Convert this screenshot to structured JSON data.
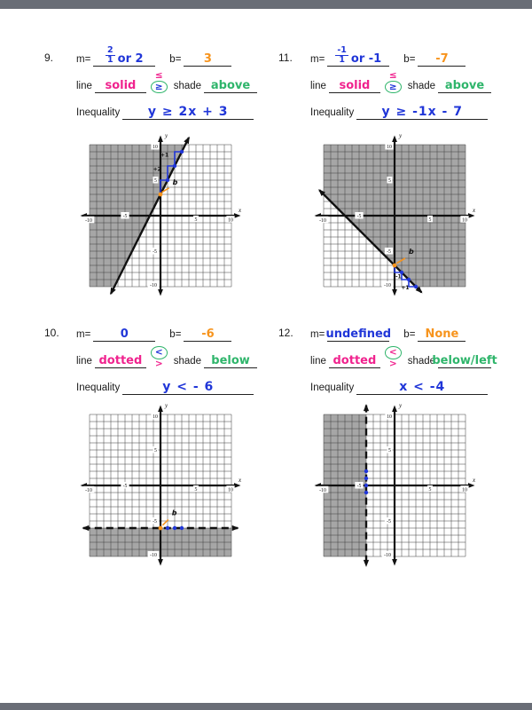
{
  "viewer": {
    "top_bar_color": "#696d76",
    "bottom_bar_color": "#696d76",
    "page_color": "#ffffff"
  },
  "colors": {
    "blue": "#2036d8",
    "orange": "#f7941d",
    "pink": "#f0238e",
    "green": "#2fb56b",
    "ink": "#1a1a1a",
    "shade": "#a6a6a6",
    "grid": "#3c3c3c"
  },
  "labels": {
    "m": "m=",
    "b": "b=",
    "line": "line",
    "shade": "shade",
    "inequality": "Inequality"
  },
  "problems": [
    {
      "number": "9.",
      "m_frac_num": "2",
      "m_frac_den": "1",
      "m_rest": "or 2",
      "b_value": "3",
      "line_value": "solid",
      "sym_top": "≤",
      "sym_bottom": "≥",
      "sym_top_color": "pink",
      "sym_bottom_color": "blue",
      "circled": "bottom",
      "shade_value": "above",
      "inequality_value": "y ≥ 2x + 3",
      "graph": {
        "xmin": -10,
        "xmax": 10,
        "ymin": -10,
        "ymax": 10,
        "x_ticks": [
          -10,
          -5,
          5,
          10
        ],
        "y_ticks": [
          10,
          5,
          -5,
          -10
        ],
        "boundary": {
          "equation": "y = 2x + 3",
          "style": "solid",
          "from": [
            -7,
            -11
          ],
          "to": [
            4,
            11
          ]
        },
        "shade_region": "above line (upper left)",
        "shade_polygon": [
          [
            -10,
            10
          ],
          [
            3.5,
            10
          ],
          [
            -6.5,
            -10
          ],
          [
            -10,
            -10
          ]
        ],
        "staircase": [
          [
            0,
            3
          ],
          [
            0,
            5
          ],
          [
            1,
            5
          ],
          [
            1,
            7
          ],
          [
            2,
            7
          ],
          [
            2,
            9
          ],
          [
            3,
            9
          ]
        ],
        "blue_points": [
          [
            1,
            5
          ],
          [
            2,
            7
          ],
          [
            3,
            9
          ]
        ],
        "orange_point": [
          0,
          3
        ],
        "orange_tick": [
          [
            0.2,
            3.3
          ],
          [
            1.2,
            3.9
          ]
        ],
        "orange_label": {
          "text": "b",
          "at": [
            1.7,
            4.4
          ]
        },
        "blue_labels": [
          {
            "text": "+2",
            "at": [
              0.1,
              6.3
            ],
            "anchor": "end"
          },
          {
            "text": "+1",
            "at": [
              1.15,
              8.3
            ],
            "anchor": "end"
          }
        ]
      }
    },
    {
      "number": "11.",
      "m_frac_num": "-1",
      "m_frac_den": "1",
      "m_rest": "or -1",
      "b_value": "-7",
      "line_value": "solid",
      "sym_top": "≤",
      "sym_bottom": "≥",
      "sym_top_color": "pink",
      "sym_bottom_color": "blue",
      "circled": "bottom",
      "shade_value": "above",
      "inequality_value": "y ≥ -1x - 7",
      "graph": {
        "xmin": -10,
        "xmax": 10,
        "ymin": -10,
        "ymax": 10,
        "x_ticks": [
          -10,
          -5,
          5,
          10
        ],
        "y_ticks": [
          10,
          5,
          -5,
          -10
        ],
        "boundary": {
          "equation": "y = -x - 7",
          "style": "solid",
          "from": [
            -10.6,
            3.6
          ],
          "to": [
            3.8,
            -10.8
          ]
        },
        "shade_region": "above line (upper right)",
        "shade_polygon": [
          [
            -10,
            3
          ],
          [
            -10,
            10
          ],
          [
            10,
            10
          ],
          [
            10,
            -10
          ],
          [
            3,
            -10
          ]
        ],
        "staircase": [
          [
            0,
            -7
          ],
          [
            0,
            -8
          ],
          [
            1,
            -8
          ],
          [
            1,
            -9
          ],
          [
            2,
            -9
          ],
          [
            2,
            -10
          ],
          [
            3,
            -10
          ]
        ],
        "blue_points": [
          [
            1,
            -8
          ],
          [
            2,
            -9
          ],
          [
            3,
            -10
          ]
        ],
        "orange_point": [
          0,
          -7
        ],
        "orange_tick": [
          [
            0.3,
            -6.7
          ],
          [
            1.5,
            -6.0
          ]
        ],
        "orange_label": {
          "text": "b",
          "at": [
            2.0,
            -5.4
          ]
        },
        "blue_labels": [
          {
            "text": "-1",
            "at": [
              0.55,
              -8.8
            ],
            "anchor": "middle"
          },
          {
            "text": "+1",
            "at": [
              1.5,
              -10.35
            ],
            "anchor": "middle"
          }
        ]
      }
    },
    {
      "number": "10.",
      "m_value": "0",
      "b_value": "-6",
      "line_value": "dotted",
      "sym_top": "<",
      "sym_bottom": ">",
      "sym_top_color": "blue",
      "sym_bottom_color": "pink",
      "circled": "top",
      "shade_value": "below",
      "inequality_value": "y < - 6",
      "graph": {
        "xmin": -10,
        "xmax": 10,
        "ymin": -10,
        "ymax": 10,
        "x_ticks": [
          -10,
          -5,
          5,
          10
        ],
        "y_ticks": [
          10,
          5,
          -5,
          -10
        ],
        "boundary": {
          "equation": "y = -6",
          "style": "dashed",
          "from": [
            -10.9,
            -6
          ],
          "to": [
            10.9,
            -6
          ]
        },
        "shade_region": "below line",
        "shade_polygon": [
          [
            -10,
            -6
          ],
          [
            10,
            -6
          ],
          [
            10,
            -10
          ],
          [
            -10,
            -10
          ]
        ],
        "blue_points": [
          [
            1,
            -6
          ],
          [
            2,
            -6
          ],
          [
            3,
            -6
          ]
        ],
        "orange_point": [
          0,
          -6
        ],
        "orange_tick": [
          [
            0.3,
            -5.6
          ],
          [
            1.1,
            -4.8
          ]
        ],
        "orange_label": {
          "text": "b",
          "at": [
            1.6,
            -4.2
          ]
        }
      }
    },
    {
      "number": "12.",
      "m_value": "undefined",
      "b_value": "None",
      "line_value": "dotted",
      "sym_top": "<",
      "sym_bottom": ">",
      "sym_top_color": "pink",
      "sym_bottom_color": "pink",
      "circled": "top",
      "shade_value": "below/left",
      "inequality_value": "x < -4",
      "graph": {
        "xmin": -10,
        "xmax": 10,
        "ymin": -10,
        "ymax": 10,
        "x_ticks": [
          -10,
          -5,
          5,
          10
        ],
        "y_ticks": [
          10,
          5,
          -5,
          -10
        ],
        "boundary": {
          "equation": "x = -4",
          "style": "dashed",
          "from": [
            -4,
            11.3
          ],
          "to": [
            -4,
            -11.3
          ]
        },
        "shade_region": "left of line",
        "shade_polygon": [
          [
            -10,
            10
          ],
          [
            -4,
            10
          ],
          [
            -4,
            -10
          ],
          [
            -10,
            -10
          ]
        ],
        "blue_points": [
          [
            -4,
            2
          ],
          [
            -4,
            1
          ],
          [
            -4,
            0
          ],
          [
            -4,
            -1
          ]
        ]
      }
    }
  ]
}
